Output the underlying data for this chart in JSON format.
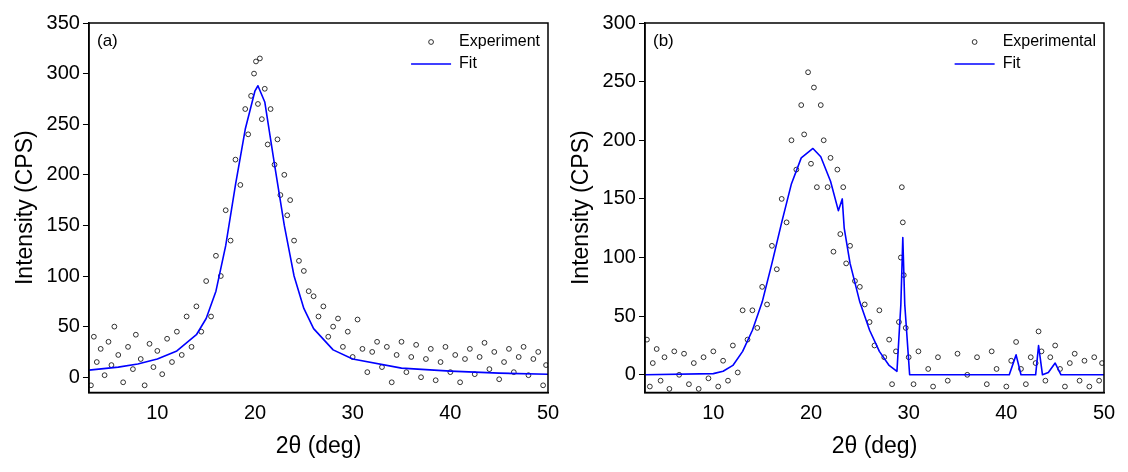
{
  "chart_data": [
    {
      "type": "scatter",
      "annotations": [
        "(a)"
      ],
      "xlabel": "2θ (deg)",
      "ylabel": "Intensity (CPS)",
      "xlim": [
        3,
        50
      ],
      "xticks": [
        10,
        20,
        30,
        40,
        50
      ],
      "ylim": [
        -15,
        350
      ],
      "yticks": [
        0,
        50,
        100,
        150,
        200,
        250,
        300,
        350
      ],
      "legend": "top right",
      "series": [
        {
          "name": "Experiment",
          "color": "#000000",
          "marker": "circle",
          "x": [
            3.2,
            3.5,
            3.8,
            4.2,
            4.6,
            5,
            5.3,
            5.6,
            6,
            6.5,
            7,
            7.5,
            7.8,
            8.3,
            8.7,
            9.2,
            9.6,
            10,
            10.5,
            11,
            11.5,
            12,
            12.5,
            13,
            13.5,
            14,
            14.5,
            15,
            15.5,
            16,
            16.5,
            17,
            17.5,
            18,
            18.5,
            19,
            19.3,
            19.6,
            19.9,
            20.1,
            20.3,
            20.5,
            20.7,
            21,
            21.3,
            21.6,
            22,
            22.3,
            22.6,
            23,
            23.3,
            23.6,
            24,
            24.5,
            25,
            25.5,
            26,
            26.5,
            27,
            27.5,
            28,
            28.5,
            29,
            29.5,
            30,
            30.5,
            31,
            31.5,
            32,
            32.5,
            33,
            33.5,
            34,
            34.5,
            35,
            35.5,
            36,
            36.5,
            37,
            37.5,
            38,
            38.5,
            39,
            39.5,
            40,
            40.5,
            41,
            41.5,
            42,
            42.5,
            43,
            43.5,
            44,
            44.5,
            45,
            45.5,
            46,
            46.5,
            47,
            47.5,
            48,
            48.5,
            49,
            49.5,
            49.8
          ],
          "values": [
            -8,
            40,
            15,
            28,
            2,
            35,
            12,
            50,
            22,
            -5,
            30,
            8,
            42,
            18,
            -8,
            33,
            10,
            26,
            3,
            38,
            15,
            45,
            22,
            60,
            30,
            70,
            45,
            95,
            60,
            120,
            100,
            165,
            135,
            215,
            190,
            265,
            240,
            278,
            300,
            312,
            270,
            315,
            255,
            285,
            230,
            265,
            210,
            235,
            180,
            200,
            160,
            175,
            135,
            115,
            105,
            85,
            80,
            60,
            70,
            40,
            50,
            58,
            30,
            45,
            20,
            57,
            28,
            5,
            25,
            35,
            10,
            30,
            -5,
            22,
            35,
            5,
            20,
            32,
            0,
            18,
            28,
            -3,
            15,
            30,
            5,
            22,
            -5,
            18,
            28,
            3,
            20,
            34,
            8,
            25,
            -2,
            15,
            28,
            5,
            20,
            30,
            2,
            18,
            25,
            -8,
            12
          ]
        },
        {
          "name": "Fit",
          "type": "line",
          "marker": "none",
          "color": "#0000ff",
          "x": [
            3,
            6,
            8,
            10,
            12,
            14,
            15,
            16,
            17,
            18,
            19,
            20,
            20.3,
            21,
            22,
            23,
            24,
            25,
            26,
            28,
            30,
            35,
            40,
            45,
            50
          ],
          "values": [
            7,
            10,
            13,
            18,
            26,
            42,
            58,
            85,
            130,
            190,
            245,
            283,
            288,
            272,
            210,
            150,
            100,
            68,
            48,
            27,
            18,
            9,
            6,
            4,
            3
          ]
        }
      ]
    },
    {
      "type": "scatter",
      "annotations": [
        "(b)"
      ],
      "xlabel": "2θ (deg)",
      "ylabel": "Intensity (CPS)",
      "xlim": [
        3,
        50
      ],
      "xticks": [
        10,
        20,
        30,
        40,
        50
      ],
      "ylim": [
        -15,
        300
      ],
      "yticks": [
        0,
        50,
        100,
        150,
        200,
        250,
        300
      ],
      "legend": "top right",
      "series": [
        {
          "name": "Experimental",
          "color": "#000000",
          "marker": "circle",
          "x": [
            3.2,
            3.5,
            3.8,
            4.2,
            4.6,
            5,
            5.5,
            6,
            6.5,
            7,
            7.5,
            8,
            8.5,
            9,
            9.5,
            10,
            10.5,
            11,
            11.5,
            12,
            12.5,
            13,
            13.5,
            14,
            14.5,
            15,
            15.5,
            16,
            16.5,
            17,
            17.5,
            18,
            18.5,
            19,
            19.3,
            19.7,
            20,
            20.3,
            20.6,
            21,
            21.3,
            21.7,
            22,
            22.3,
            22.7,
            23,
            23.3,
            23.6,
            24,
            24.5,
            25,
            25.5,
            26,
            26.5,
            27,
            27.5,
            28,
            28.3,
            28.7,
            29,
            29.2,
            29.3,
            29.4,
            29.5,
            29.7,
            30,
            30.5,
            31,
            32,
            32.5,
            33,
            34,
            35,
            36,
            37,
            38,
            38.5,
            39,
            40,
            40.5,
            41,
            41.5,
            42,
            42.5,
            43,
            43.3,
            43.6,
            44,
            44.5,
            45,
            45.5,
            46,
            46.5,
            47,
            47.5,
            48,
            48.5,
            49,
            49.5,
            49.8
          ],
          "values": [
            30,
            -10,
            10,
            22,
            -5,
            15,
            -12,
            20,
            0,
            18,
            -8,
            10,
            -12,
            15,
            -3,
            20,
            -10,
            12,
            -5,
            25,
            2,
            55,
            30,
            55,
            40,
            75,
            60,
            110,
            90,
            150,
            130,
            200,
            175,
            230,
            205,
            258,
            180,
            245,
            160,
            230,
            200,
            160,
            185,
            105,
            175,
            120,
            160,
            95,
            110,
            80,
            75,
            60,
            45,
            25,
            55,
            15,
            30,
            -8,
            20,
            45,
            100,
            160,
            130,
            85,
            40,
            15,
            -8,
            20,
            5,
            -10,
            15,
            -5,
            18,
            0,
            15,
            -8,
            20,
            5,
            -10,
            12,
            28,
            5,
            -8,
            15,
            10,
            37,
            20,
            -5,
            15,
            25,
            5,
            -10,
            10,
            18,
            -5,
            12,
            -10,
            15,
            -5,
            10
          ]
        },
        {
          "name": "Fit",
          "type": "line",
          "marker": "none",
          "color": "#0000ff",
          "x": [
            3,
            10,
            11,
            12,
            13,
            14,
            15,
            16,
            17,
            18,
            19,
            20.2,
            21,
            22,
            22.8,
            23.2,
            23.4,
            24,
            25,
            26,
            27,
            28,
            28.8,
            29.2,
            29.4,
            29.6,
            30.1,
            40.3,
            41,
            41.5,
            43,
            43.3,
            43.7,
            44.3,
            45,
            45.6,
            50
          ],
          "values": [
            0,
            1,
            3,
            8,
            20,
            38,
            62,
            95,
            130,
            163,
            185,
            193,
            186,
            165,
            140,
            150,
            125,
            95,
            62,
            38,
            20,
            8,
            3,
            60,
            117,
            60,
            0,
            0,
            17,
            0,
            0,
            25,
            0,
            2,
            10,
            0,
            0
          ]
        }
      ]
    }
  ]
}
